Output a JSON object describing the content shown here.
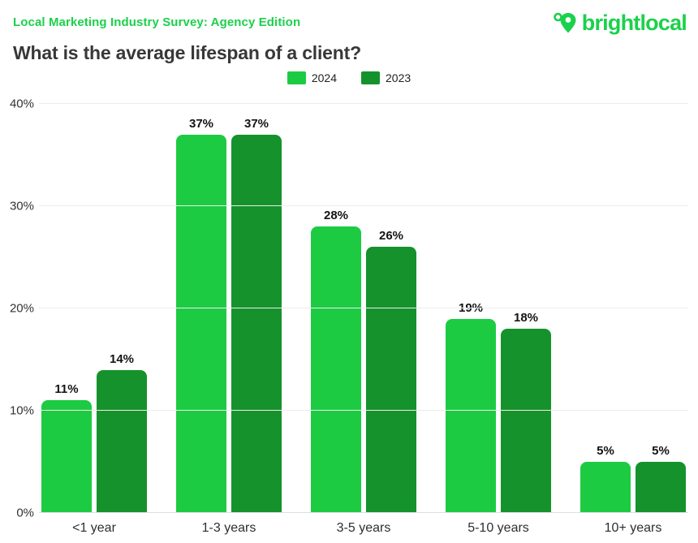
{
  "header": {
    "survey_label": "Local Marketing Industry Survey: Agency Edition",
    "logo_text": "brightlocal",
    "title": "What is the average lifespan of a client?"
  },
  "colors": {
    "brand_green": "#1bd14b",
    "series_2024": "#1dcb43",
    "series_2023": "#15922c",
    "title_text": "#383838",
    "value_label_text": "#141414",
    "axis_text": "#333333",
    "gridline": "#ececec",
    "baseline": "#dedede"
  },
  "chart_data": {
    "type": "bar",
    "title": "What is the average lifespan of a client?",
    "categories": [
      "<1 year",
      "1-3 years",
      "3-5 years",
      "5-10 years",
      "10+ years"
    ],
    "series": [
      {
        "name": "2024",
        "color": "#1dcb43",
        "values": [
          11,
          37,
          28,
          19,
          5
        ]
      },
      {
        "name": "2023",
        "color": "#15922c",
        "values": [
          14,
          37,
          26,
          18,
          5
        ]
      }
    ],
    "value_labels": [
      [
        "11%",
        "37%",
        "28%",
        "19%",
        "5%"
      ],
      [
        "14%",
        "37%",
        "26%",
        "18%",
        "5%"
      ]
    ],
    "xlabel": "",
    "ylabel": "",
    "ylim": [
      0,
      40
    ],
    "yticks": [
      {
        "value": 0,
        "label": "0%"
      },
      {
        "value": 10,
        "label": "10%"
      },
      {
        "value": 20,
        "label": "20%"
      },
      {
        "value": 30,
        "label": "30%"
      },
      {
        "value": 40,
        "label": "40%"
      }
    ],
    "grid": true,
    "legend_position": "top-center",
    "bar_corner_radius": "rounded-top"
  }
}
